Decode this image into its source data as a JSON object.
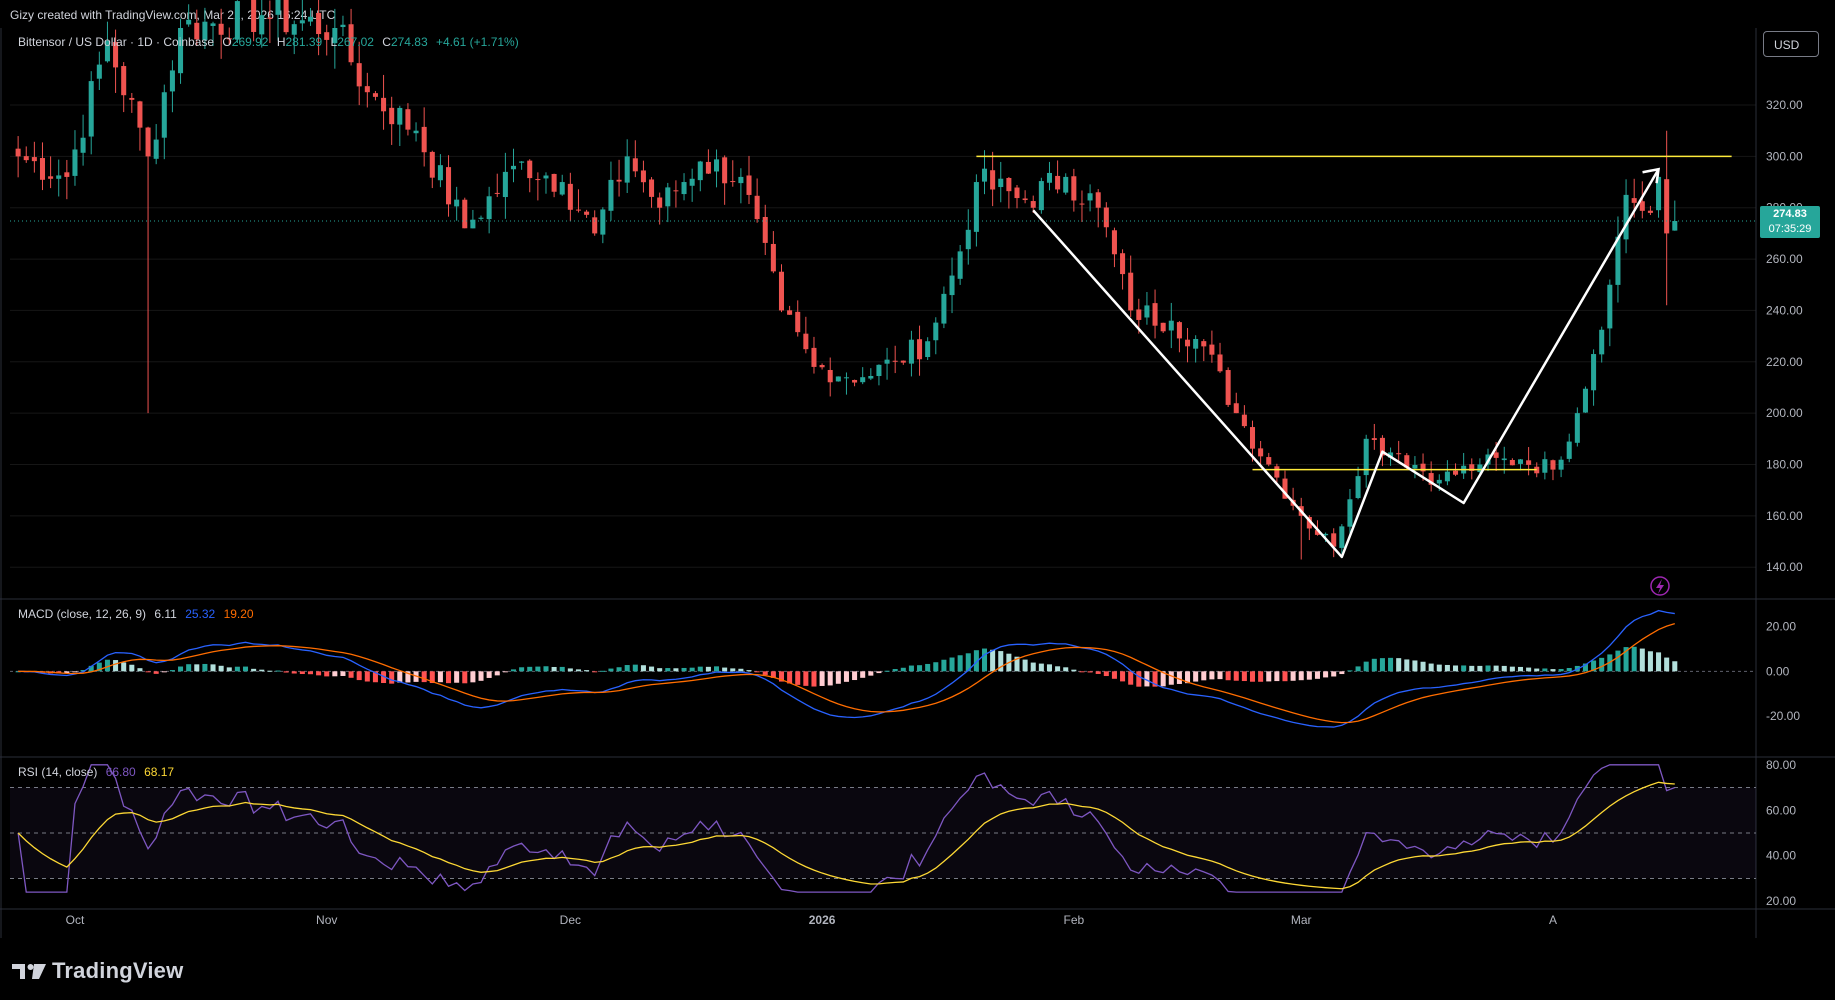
{
  "header": {
    "caption": "Gizy created with TradingView.com, Mar 21, 2026 16:24 UTC"
  },
  "legend": {
    "symbol": "Bittensor / US Dollar · 1D · Coinbase",
    "open_label": "O",
    "open": "269.92",
    "high_label": "H",
    "high": "281.39",
    "low_label": "L",
    "low": "267.02",
    "close_label": "C",
    "close": "274.83",
    "change": "+4.61 (+1.71%)"
  },
  "currency": "USD",
  "last_price": {
    "value": "274.83",
    "countdown": "07:35:29"
  },
  "macd_legend": {
    "name": "MACD (close, 12, 26, 9)",
    "hist": "6.11",
    "macd": "25.32",
    "signal": "19.20"
  },
  "rsi_legend": {
    "name": "RSI (14, close)",
    "rsi": "66.80",
    "ma": "68.17"
  },
  "x_labels": [
    "Oct",
    "Nov",
    "Dec",
    "2026",
    "Feb",
    "Mar",
    "A"
  ],
  "logo": {
    "text": "TradingView"
  },
  "colors": {
    "up": "#26a69a",
    "down": "#ef5350",
    "hist_up_strong": "#26a69a",
    "hist_up_weak": "#b2dfdb",
    "hist_down_strong": "#ff5252",
    "hist_down_weak": "#ffcdd2",
    "macd_line": "#2962ff",
    "signal_line": "#ff6d00",
    "rsi_line": "#7e57c2",
    "rsi_ma": "#fdd835",
    "level_line": "#ffeb3b",
    "pattern_line": "#ffffff"
  },
  "chart_data": [
    {
      "type": "candlestick",
      "title": "Bittensor / US Dollar · 1D · Coinbase",
      "y_ticks": [
        140,
        160,
        180,
        200,
        220,
        240,
        260,
        280,
        300,
        320
      ],
      "ylim": [
        128,
        350
      ],
      "anchors": [
        {
          "date": "2025-09-24",
          "price": 300
        },
        {
          "date": "2025-09-30",
          "price": 292
        },
        {
          "date": "2025-10-05",
          "price": 345
        },
        {
          "date": "2025-10-10",
          "price": 300
        },
        {
          "date": "2025-10-14",
          "price": 350
        },
        {
          "date": "2025-10-24",
          "price": 355
        },
        {
          "date": "2025-11-02",
          "price": 350
        },
        {
          "date": "2025-11-06",
          "price": 325
        },
        {
          "date": "2025-11-12",
          "price": 310
        },
        {
          "date": "2025-11-18",
          "price": 272
        },
        {
          "date": "2025-11-25",
          "price": 298
        },
        {
          "date": "2025-11-30",
          "price": 290
        },
        {
          "date": "2025-12-04",
          "price": 270
        },
        {
          "date": "2025-12-08",
          "price": 300
        },
        {
          "date": "2025-12-12",
          "price": 280
        },
        {
          "date": "2025-12-17",
          "price": 298
        },
        {
          "date": "2025-12-22",
          "price": 292
        },
        {
          "date": "2025-12-27",
          "price": 240
        },
        {
          "date": "2025-12-31",
          "price": 218
        },
        {
          "date": "2026-01-06",
          "price": 214
        },
        {
          "date": "2026-01-10",
          "price": 220
        },
        {
          "date": "2026-01-14",
          "price": 228
        },
        {
          "date": "2026-01-18",
          "price": 263
        },
        {
          "date": "2026-01-20",
          "price": 290
        },
        {
          "date": "2026-01-26",
          "price": 283
        },
        {
          "date": "2026-01-31",
          "price": 292
        },
        {
          "date": "2026-02-04",
          "price": 280
        },
        {
          "date": "2026-02-08",
          "price": 240
        },
        {
          "date": "2026-02-13",
          "price": 236
        },
        {
          "date": "2026-02-17",
          "price": 226
        },
        {
          "date": "2026-02-21",
          "price": 200
        },
        {
          "date": "2026-02-25",
          "price": 180
        },
        {
          "date": "2026-03-01",
          "price": 160
        },
        {
          "date": "2026-03-05",
          "price": 148
        },
        {
          "date": "2026-03-09",
          "price": 190
        },
        {
          "date": "2026-03-13",
          "price": 184
        },
        {
          "date": "2026-03-18",
          "price": 174
        },
        {
          "date": "2026-03-23",
          "price": 180
        },
        {
          "date": "2026-03-28",
          "price": 182
        },
        {
          "date": "2026-04-01",
          "price": 178
        },
        {
          "date": "2026-04-04",
          "price": 200
        },
        {
          "date": "2026-04-08",
          "price": 250
        },
        {
          "date": "2026-04-10",
          "price": 285
        },
        {
          "date": "2026-04-13",
          "price": 278
        },
        {
          "date": "2026-04-14",
          "price": 292
        },
        {
          "date": "2026-04-15",
          "price": 270
        },
        {
          "date": "2026-04-16",
          "price": 274.83
        }
      ],
      "drawings": {
        "resistance_level": {
          "from": "2026-01-20",
          "to": "2026-04-23",
          "price": 300
        },
        "support_level": {
          "from": "2026-02-23",
          "to": "2026-03-30",
          "price": 178
        },
        "pattern_path": [
          {
            "date": "2026-01-27",
            "price": 279
          },
          {
            "date": "2026-03-06",
            "price": 144
          },
          {
            "date": "2026-03-11",
            "price": 185
          },
          {
            "date": "2026-03-21",
            "price": 165
          },
          {
            "date": "2026-04-14",
            "price": 295
          }
        ],
        "pattern_arrow_head": {
          "date": "2026-04-14",
          "price": 295
        }
      }
    },
    {
      "type": "bar+line",
      "title": "MACD (close, 12, 26, 9)",
      "y_ticks": [
        -20,
        0,
        20
      ],
      "ylim": [
        -38,
        32
      ],
      "series": [
        {
          "name": "MACD",
          "key": "macd"
        },
        {
          "name": "Signal",
          "key": "signal"
        },
        {
          "name": "Histogram",
          "key": "hist"
        }
      ]
    },
    {
      "type": "line",
      "title": "RSI (14, close)",
      "y_ticks": [
        20,
        40,
        60,
        80
      ],
      "ylim": [
        17,
        83
      ],
      "bands": [
        30,
        50,
        70
      ],
      "series": [
        {
          "name": "RSI",
          "key": "rsi"
        },
        {
          "name": "RSI MA",
          "key": "rsi_ma"
        }
      ]
    }
  ]
}
